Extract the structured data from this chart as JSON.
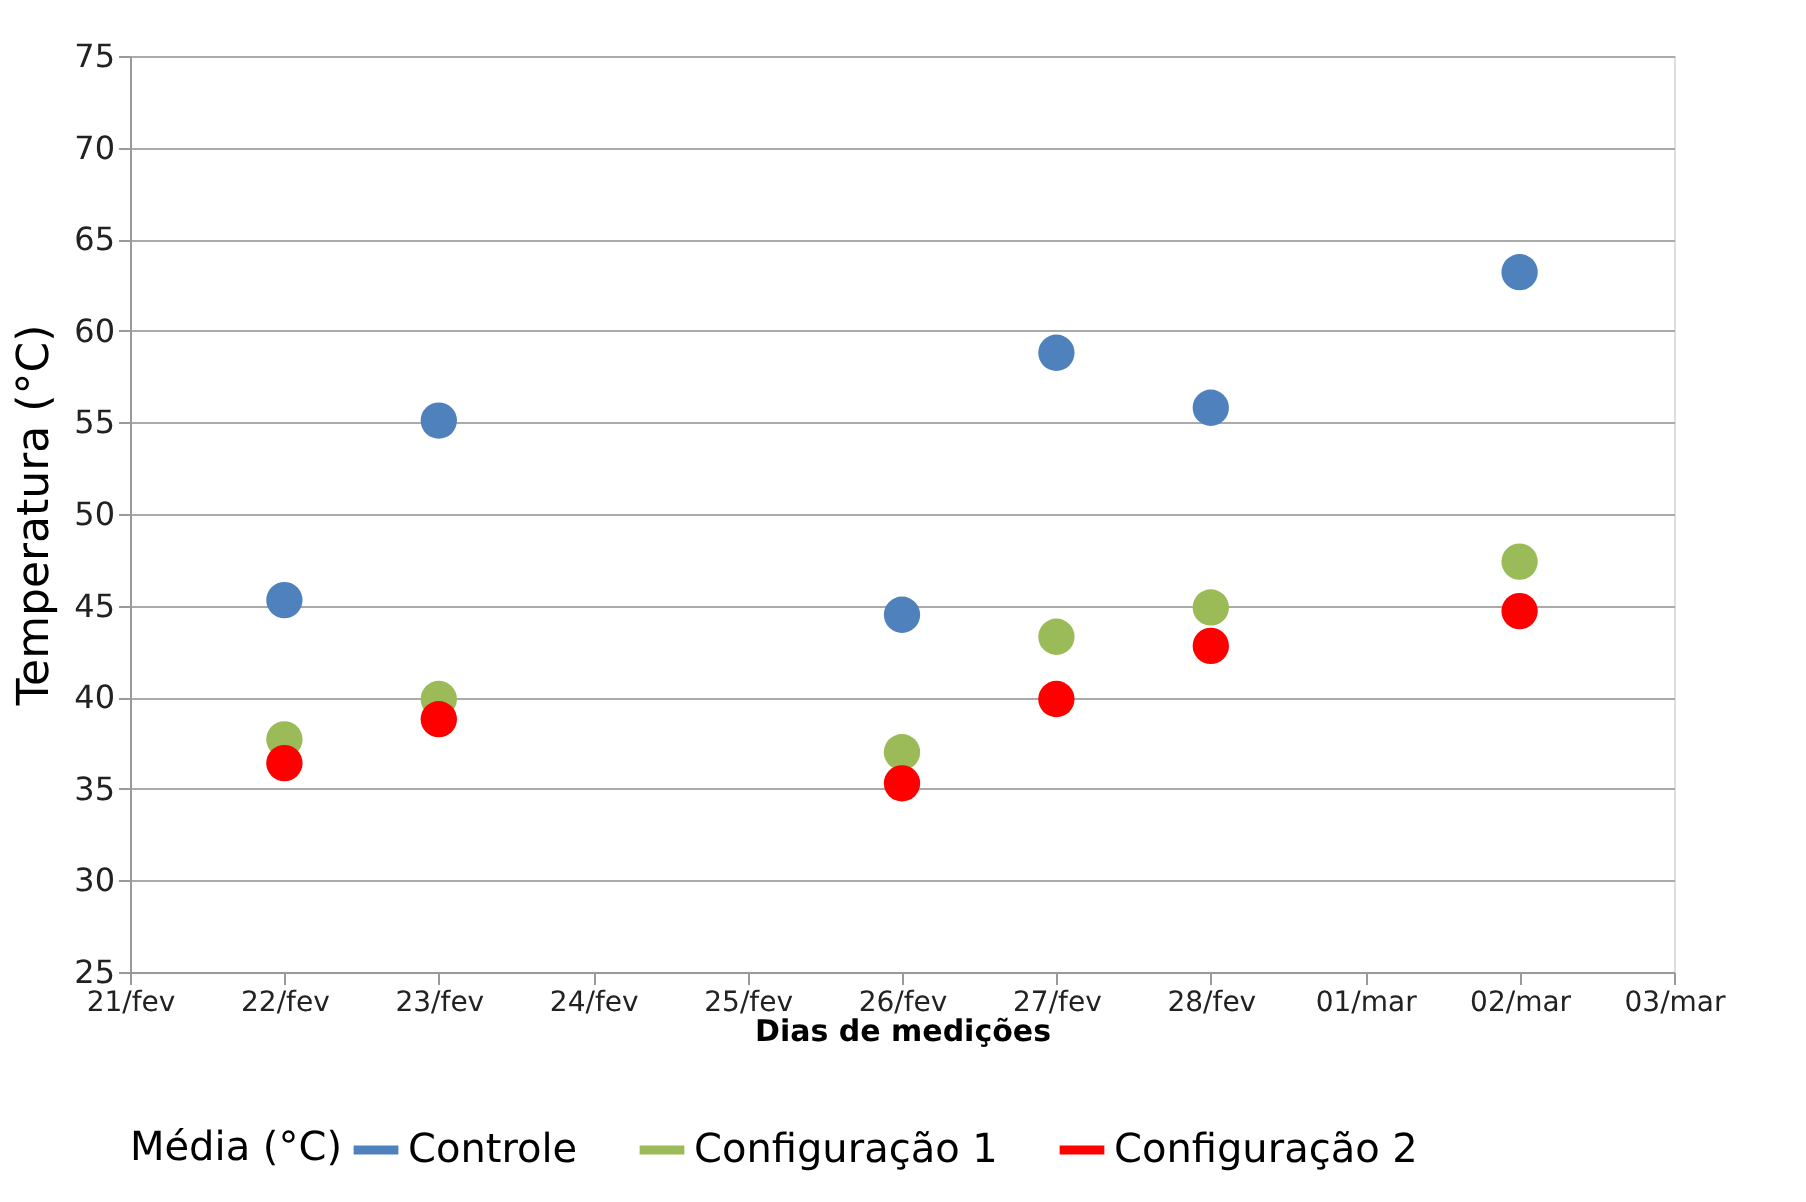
{
  "chart_data": {
    "type": "scatter",
    "xlabel": "Dias de medições",
    "ylabel": "Temperatura (°C)",
    "legend_title": "Média (°C)",
    "categories": [
      "21/fev",
      "22/fev",
      "23/fev",
      "24/fev",
      "25/fev",
      "26/fev",
      "27/fev",
      "28/fev",
      "01/mar",
      "02/mar",
      "03/mar"
    ],
    "series": [
      {
        "name": "Controle",
        "color": "#4f81bd",
        "values": [
          null,
          45.3,
          55.1,
          null,
          null,
          44.5,
          58.8,
          55.8,
          null,
          63.2,
          null
        ]
      },
      {
        "name": "Configuração 1",
        "color": "#9bbb59",
        "values": [
          null,
          37.7,
          39.9,
          null,
          null,
          37.0,
          43.3,
          44.9,
          null,
          47.4,
          null
        ]
      },
      {
        "name": "Configuração 2",
        "color": "#ff0000",
        "values": [
          null,
          36.4,
          38.8,
          null,
          null,
          35.3,
          39.9,
          42.8,
          null,
          44.7,
          null
        ]
      }
    ],
    "ylim": [
      25,
      75
    ],
    "yticks": [
      25,
      30,
      35,
      40,
      45,
      50,
      55,
      60,
      65,
      70,
      75
    ],
    "grid": "y",
    "legend": "bottom",
    "marker": "circle"
  }
}
